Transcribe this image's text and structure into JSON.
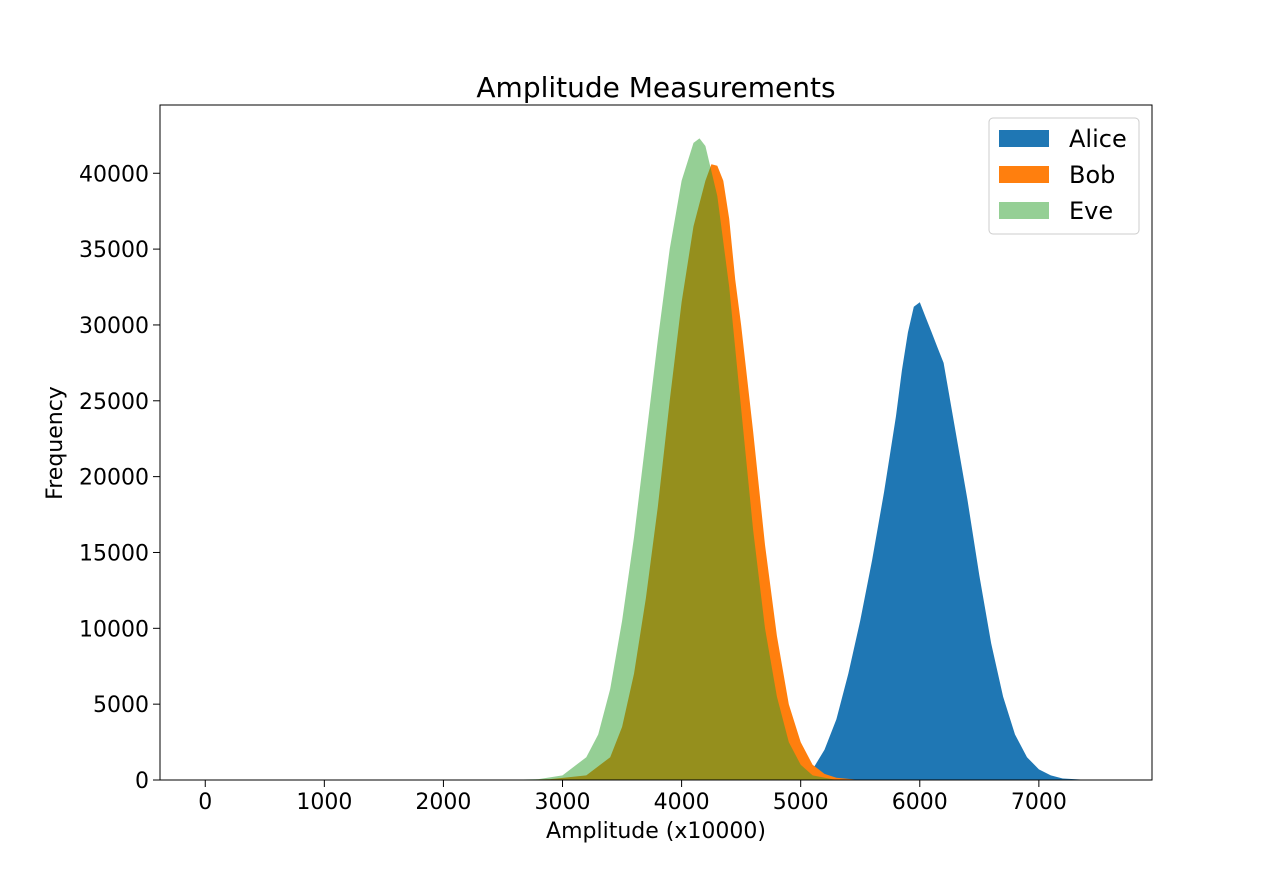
{
  "chart_data": {
    "type": "bar",
    "title": "Amplitude Measurements",
    "xlabel": "Amplitude (x10000)",
    "ylabel": "Frequency",
    "xlim": [
      -380,
      7950
    ],
    "ylim": [
      0,
      44500
    ],
    "xticks": [
      0,
      1000,
      2000,
      3000,
      4000,
      5000,
      6000,
      7000
    ],
    "yticks": [
      0,
      5000,
      10000,
      15000,
      20000,
      25000,
      30000,
      35000,
      40000
    ],
    "grid": false,
    "legend_position": "top-right",
    "series": [
      {
        "name": "Alice",
        "color": "#1f77b4",
        "opacity": 1,
        "points": [
          [
            4950,
            0
          ],
          [
            5000,
            150
          ],
          [
            5100,
            700
          ],
          [
            5200,
            2000
          ],
          [
            5300,
            4000
          ],
          [
            5400,
            7000
          ],
          [
            5500,
            10500
          ],
          [
            5600,
            14500
          ],
          [
            5700,
            19000
          ],
          [
            5800,
            24000
          ],
          [
            5850,
            27000
          ],
          [
            5900,
            29500
          ],
          [
            5950,
            31200
          ],
          [
            6000,
            31500
          ],
          [
            6050,
            30500
          ],
          [
            6100,
            29500
          ],
          [
            6150,
            28500
          ],
          [
            6200,
            27500
          ],
          [
            6300,
            23000
          ],
          [
            6400,
            18500
          ],
          [
            6500,
            13500
          ],
          [
            6600,
            9000
          ],
          [
            6700,
            5500
          ],
          [
            6800,
            3000
          ],
          [
            6900,
            1500
          ],
          [
            7000,
            700
          ],
          [
            7100,
            300
          ],
          [
            7200,
            100
          ],
          [
            7350,
            30
          ],
          [
            7550,
            0
          ]
        ]
      },
      {
        "name": "Bob",
        "color": "#ff7f0e",
        "opacity": 1,
        "points": [
          [
            2600,
            0
          ],
          [
            2900,
            60
          ],
          [
            3200,
            300
          ],
          [
            3400,
            1500
          ],
          [
            3500,
            3500
          ],
          [
            3600,
            7000
          ],
          [
            3700,
            12000
          ],
          [
            3800,
            18000
          ],
          [
            3900,
            25000
          ],
          [
            4000,
            31500
          ],
          [
            4100,
            36500
          ],
          [
            4200,
            39500
          ],
          [
            4250,
            40600
          ],
          [
            4300,
            40500
          ],
          [
            4350,
            39500
          ],
          [
            4400,
            37000
          ],
          [
            4450,
            33000
          ],
          [
            4500,
            30000
          ],
          [
            4600,
            23000
          ],
          [
            4700,
            15500
          ],
          [
            4800,
            9500
          ],
          [
            4900,
            5000
          ],
          [
            5000,
            2500
          ],
          [
            5100,
            1000
          ],
          [
            5200,
            400
          ],
          [
            5300,
            150
          ],
          [
            5500,
            0
          ]
        ]
      },
      {
        "name": "Eve",
        "color": "#2ca02c",
        "opacity": 0.5,
        "points": [
          [
            2500,
            0
          ],
          [
            2800,
            60
          ],
          [
            3000,
            300
          ],
          [
            3200,
            1500
          ],
          [
            3300,
            3000
          ],
          [
            3400,
            6000
          ],
          [
            3500,
            10500
          ],
          [
            3600,
            16000
          ],
          [
            3700,
            22500
          ],
          [
            3800,
            29000
          ],
          [
            3900,
            35000
          ],
          [
            4000,
            39500
          ],
          [
            4100,
            42000
          ],
          [
            4150,
            42300
          ],
          [
            4200,
            41800
          ],
          [
            4300,
            38500
          ],
          [
            4400,
            32500
          ],
          [
            4500,
            24500
          ],
          [
            4600,
            16500
          ],
          [
            4700,
            10000
          ],
          [
            4800,
            5500
          ],
          [
            4900,
            2500
          ],
          [
            5000,
            1000
          ],
          [
            5100,
            300
          ],
          [
            5300,
            0
          ]
        ]
      }
    ]
  }
}
